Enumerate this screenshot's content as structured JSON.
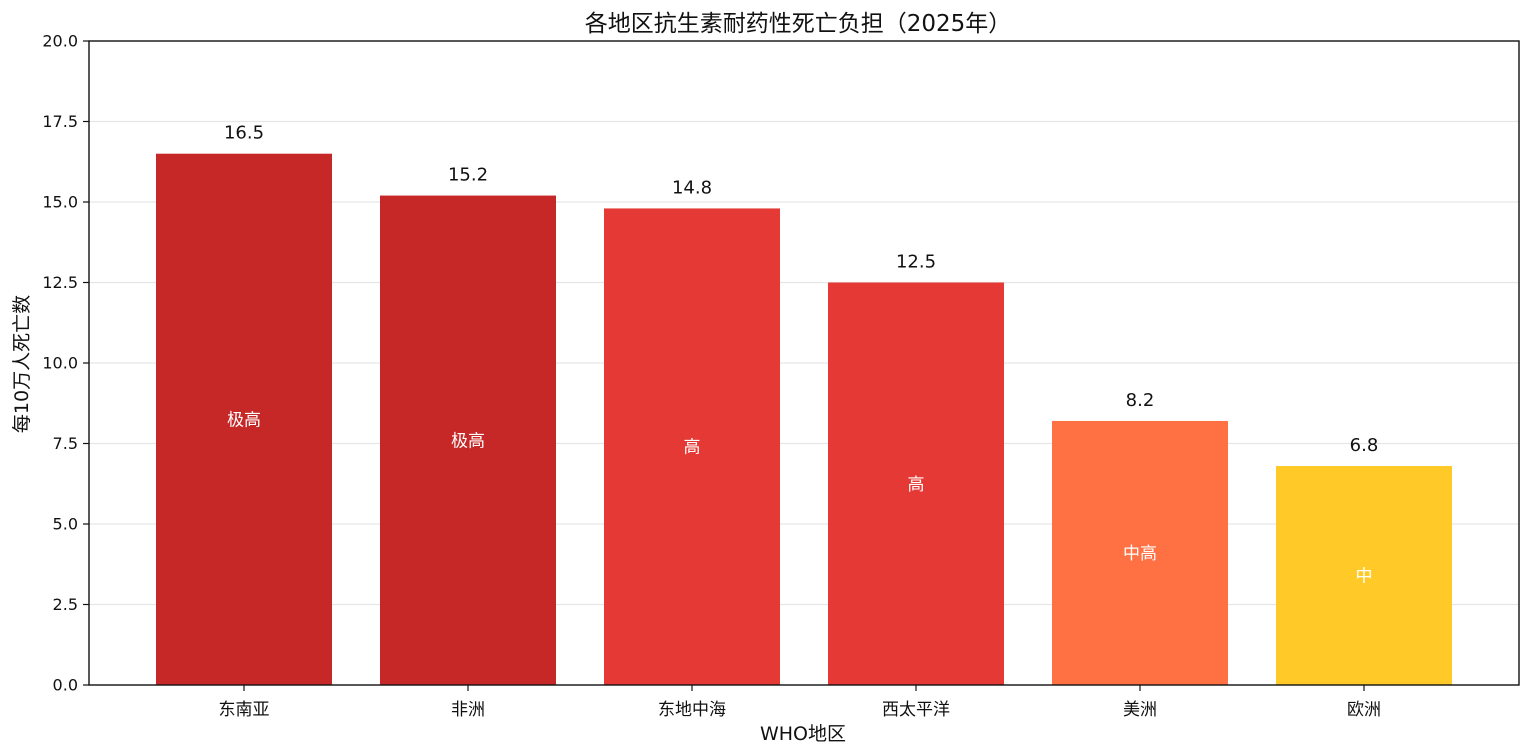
{
  "chart_data": {
    "type": "bar",
    "title": "各地区抗生素耐药性死亡负担（2025年）",
    "xlabel": "WHO地区",
    "ylabel": "每10万人死亡数",
    "ylim": [
      0,
      20
    ],
    "yticks": [
      0.0,
      2.5,
      5.0,
      7.5,
      10.0,
      12.5,
      15.0,
      17.5,
      20.0
    ],
    "ytick_labels": [
      "0.0",
      "2.5",
      "5.0",
      "7.5",
      "10.0",
      "12.5",
      "15.0",
      "17.5",
      "20.0"
    ],
    "grid": true,
    "categories": [
      "东南亚",
      "非洲",
      "东地中海",
      "西太平洋",
      "美洲",
      "欧洲"
    ],
    "values": [
      16.5,
      15.2,
      14.8,
      12.5,
      8.2,
      6.8
    ],
    "value_labels": [
      "16.5",
      "15.2",
      "14.8",
      "12.5",
      "8.2",
      "6.8"
    ],
    "levels": [
      "极高",
      "极高",
      "高",
      "高",
      "中高",
      "中"
    ],
    "colors": [
      "#c62828",
      "#c62828",
      "#e53935",
      "#e53935",
      "#ff7043",
      "#ffca28"
    ]
  }
}
